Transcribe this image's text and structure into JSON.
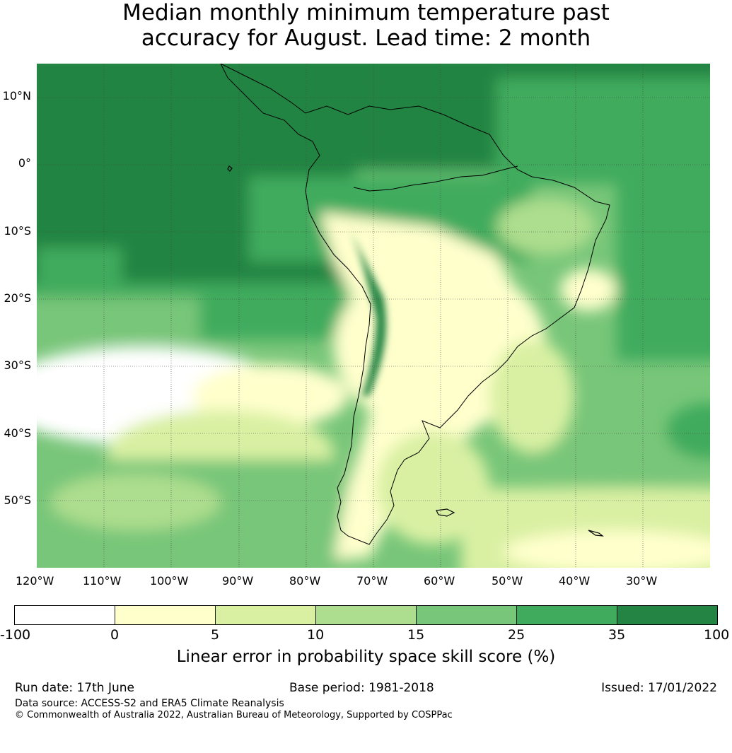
{
  "title": {
    "line1": "Median monthly minimum temperature past",
    "line2": "accuracy for August. Lead time: 2 month"
  },
  "map": {
    "region": "South America",
    "lat_labels": [
      "10°N",
      "0°",
      "10°S",
      "20°S",
      "30°S",
      "40°S",
      "50°S"
    ],
    "lon_labels": [
      "120°W",
      "110°W",
      "100°W",
      "90°W",
      "80°W",
      "70°W",
      "60°W",
      "50°W",
      "40°W",
      "30°W"
    ],
    "extent": {
      "lon_min": -120,
      "lon_max": -20,
      "lat_min": -60,
      "lat_max": 15
    }
  },
  "colorbar": {
    "ticks": [
      "-100",
      "0",
      "5",
      "10",
      "15",
      "25",
      "35",
      "100"
    ],
    "label": "Linear error in probability space skill score (%)",
    "colors": [
      "#ffffff",
      "#ffffcc",
      "#d9f0a3",
      "#addd8e",
      "#78c679",
      "#41ab5d",
      "#238443"
    ]
  },
  "footer": {
    "run_date": "Run date: 17th June",
    "base_period": "Base period: 1981-2018",
    "issued": "Issued: 17/01/2022",
    "data_source": "Data source: ACCESS-S2 and ERA5 Climate Reanalysis",
    "copyright": "© Commonwealth of Australia 2022, Australian Bureau of Meteorology, Supported by COSPPac"
  }
}
